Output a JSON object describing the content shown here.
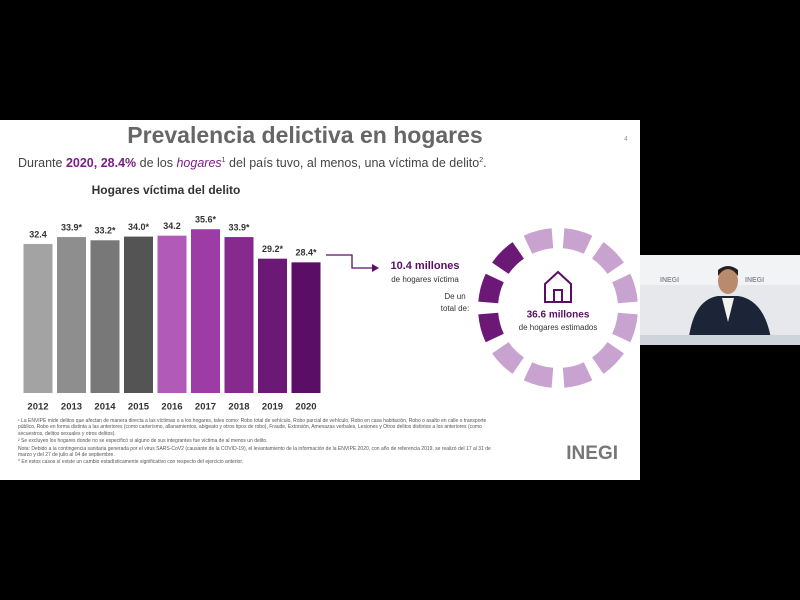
{
  "slide": {
    "title": "Prevalencia delictiva en hogares",
    "page": "4",
    "subtitle": [
      "Durante ",
      "2020, 28.4%",
      " de los ",
      "hogares",
      "1",
      " del país tuvo, al menos, una víctima de delito",
      "2",
      "."
    ],
    "callout": {
      "victims": "10.4 millones",
      "victims_label": "de hogares víctima",
      "intro_1": "De un",
      "intro_2": "total de:",
      "total": "36.6 millones",
      "total_label": "de hogares estimados"
    },
    "footnotes": [
      "¹ La ENVIPE mide delitos que afectan de manera directa a las víctimas o a los hogares, tales como: Robo total de vehículo, Robo parcial de vehículo, Robo en casa habitación, Robo o asalto en calle o transporte público, Robo en forma distinta a las anteriores (como carterismo, allanamientos, abigeato y otros tipos de robo), Fraude, Extorsión, Amenazas verbales, Lesiones y Otros delitos distintos a los anteriores (como secuestros, delitos sexuales y otros delitos).",
      "² Se excluyen los hogares donde no se especificó si alguno de sus integrantes fue víctima de al menos un delito.",
      "Nota: Debido a la contingencia sanitaria generada por el virus SARS-CoV2 (causante de la COVID-19), el levantamiento de la información de la ENVIPE 2020, con año de referencia 2019, se realizó del 17 al 31 de marzo y del 27 de julio al 04 de septiembre.",
      "* En estos casos sí existe un cambio estadísticamente significativo con respecto del ejercicio anterior."
    ],
    "logo": "INEGI",
    "inset_logo": "INEGI"
  },
  "chart_data": {
    "type": "bar",
    "title": "Hogares víctima del delito",
    "categories": [
      "2012",
      "2013",
      "2014",
      "2015",
      "2016",
      "2017",
      "2018",
      "2019",
      "2020"
    ],
    "values": [
      32.4,
      33.9,
      33.2,
      34.0,
      34.2,
      35.6,
      33.9,
      29.2,
      28.4
    ],
    "value_labels": [
      "32.4",
      "33.9*",
      "33.2*",
      "34.0*",
      "34.2",
      "35.6*",
      "33.9*",
      "29.2*",
      "28.4*"
    ],
    "colors": [
      "#a3a3a3",
      "#8e8e8e",
      "#787878",
      "#545454",
      "#b15ab8",
      "#9c3ca4",
      "#872a8e",
      "#6c1877",
      "#5a0e66"
    ]
  }
}
